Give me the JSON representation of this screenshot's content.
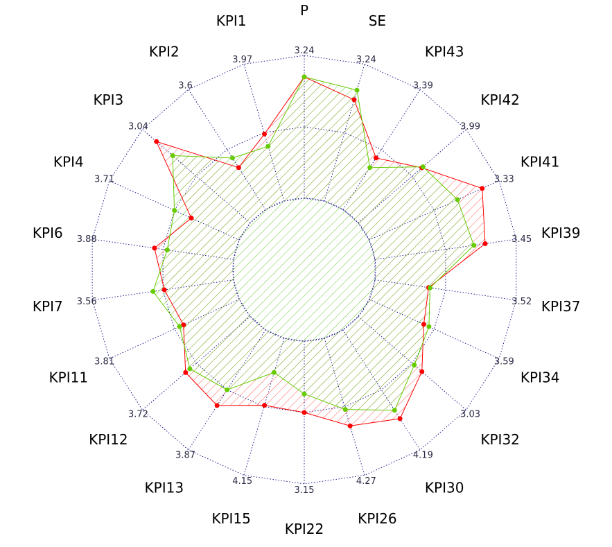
{
  "chart_data": {
    "type": "radar",
    "title": "",
    "rings": 4,
    "grid": "dotted",
    "grid_color": "#1a1a8c",
    "axes": [
      {
        "label": "P",
        "max": "3.24"
      },
      {
        "label": "SE",
        "max": "3.24"
      },
      {
        "label": "KPI43",
        "max": "3.39"
      },
      {
        "label": "KPI42",
        "max": "3.99"
      },
      {
        "label": "KPI41",
        "max": "3.33"
      },
      {
        "label": "KPI39",
        "max": "3.45"
      },
      {
        "label": "KPI37",
        "max": "3.52"
      },
      {
        "label": "KPI34",
        "max": "3.59"
      },
      {
        "label": "KPI32",
        "max": "3.03"
      },
      {
        "label": "KPI30",
        "max": "4.19"
      },
      {
        "label": "KPI26",
        "max": "4.27"
      },
      {
        "label": "KPI22",
        "max": "3.15"
      },
      {
        "label": "KPI15",
        "max": "4.15"
      },
      {
        "label": "KPI13",
        "max": "3.87"
      },
      {
        "label": "KPI12",
        "max": "3.72"
      },
      {
        "label": "KPI11",
        "max": "3.81"
      },
      {
        "label": "KPI7",
        "max": "3.56"
      },
      {
        "label": "KPI6",
        "max": "3.88"
      },
      {
        "label": "KPI4",
        "max": "3.71"
      },
      {
        "label": "KPI3",
        "max": "3.04"
      },
      {
        "label": "KPI2",
        "max": "3.6"
      },
      {
        "label": "KPI1",
        "max": "3.97"
      }
    ],
    "series": [
      {
        "color": "#ff0000",
        "fill_hatch": "#ff5a5a",
        "values": [
          0.85,
          0.74,
          0.43,
          0.59,
          0.87,
          0.78,
          0.38,
          0.42,
          0.59,
          0.74,
          0.64,
          0.5,
          0.49,
          0.63,
          0.6,
          0.43,
          0.49,
          0.56,
          0.37,
          0.87,
          0.35,
          0.49
        ]
      },
      {
        "color": "#66cc00",
        "fill_hatch": "#66cc33",
        "values": [
          0.85,
          0.81,
          0.35,
          0.6,
          0.68,
          0.7,
          0.39,
          0.46,
          0.52,
          0.67,
          0.52,
          0.37,
          0.25,
          0.5,
          0.56,
          0.46,
          0.57,
          0.47,
          0.5,
          0.72,
          0.43,
          0.4
        ]
      }
    ]
  }
}
